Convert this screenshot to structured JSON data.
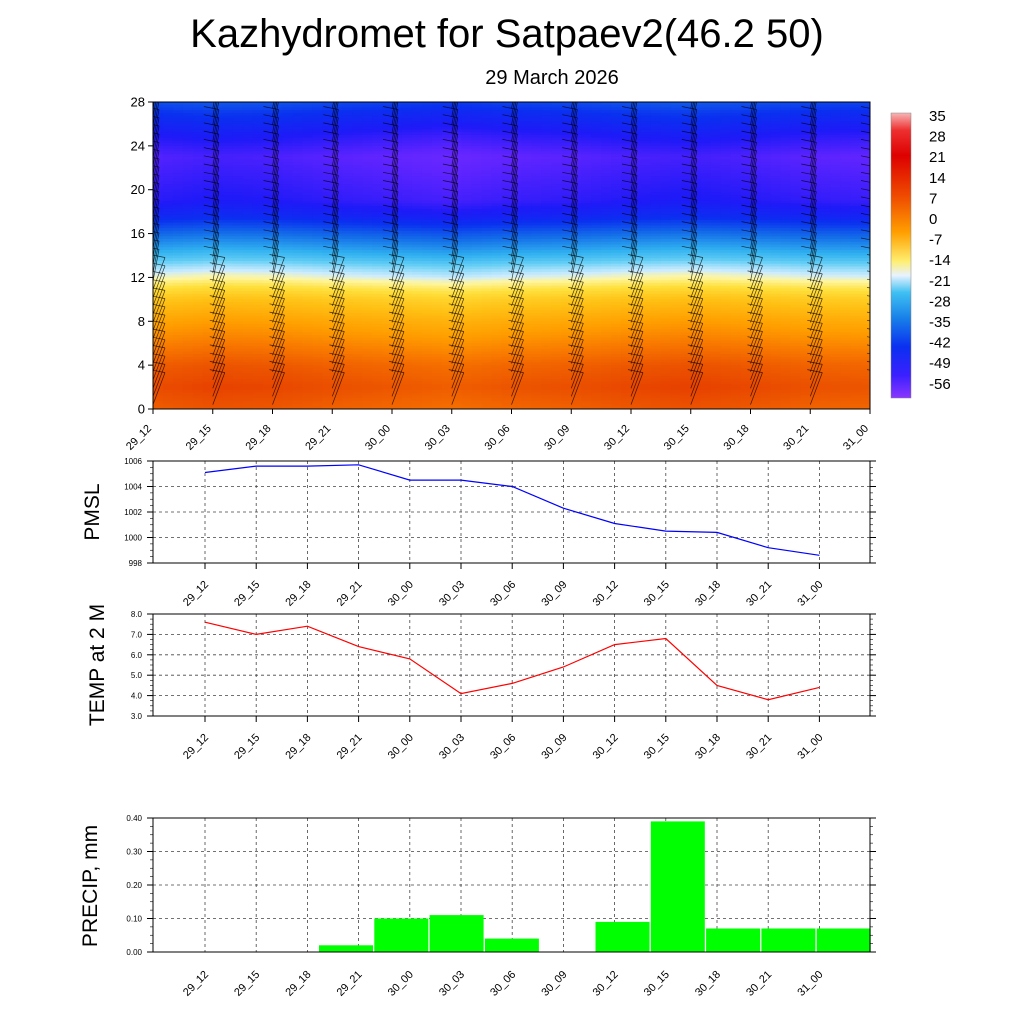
{
  "header": {
    "title": "Kazhydromet for Satpaev2(46.2 50)",
    "date": "29 March 2026"
  },
  "time_labels": [
    "29_12",
    "29_15",
    "29_18",
    "29_21",
    "30_00",
    "30_03",
    "30_06",
    "30_09",
    "30_12",
    "30_15",
    "30_18",
    "30_21",
    "31_00"
  ],
  "chart_data": [
    {
      "type": "heatmap",
      "panel": "upper-air-temperature",
      "x": [
        "29_12",
        "29_15",
        "29_18",
        "29_21",
        "30_00",
        "30_03",
        "30_06",
        "30_09",
        "30_12",
        "30_15",
        "30_18",
        "30_21",
        "31_00"
      ],
      "y_ticks": [
        0,
        4,
        8,
        12,
        16,
        20,
        24,
        28
      ],
      "ylim": [
        0,
        28
      ],
      "colorbar_labels": [
        35,
        28,
        21,
        14,
        7,
        0,
        -7,
        -14,
        -21,
        -28,
        -35,
        -42,
        -49,
        -56
      ],
      "colorbar_range": [
        -63,
        42
      ],
      "profile": [
        [
          0,
          8
        ],
        [
          2,
          10
        ],
        [
          4,
          8
        ],
        [
          6,
          4
        ],
        [
          8,
          0
        ],
        [
          10,
          -5
        ],
        [
          11,
          -9
        ],
        [
          11.8,
          -13
        ],
        [
          12.8,
          -18
        ],
        [
          14,
          -26
        ],
        [
          16,
          -37
        ],
        [
          17.5,
          -46
        ],
        [
          19,
          -51
        ],
        [
          21,
          -53
        ],
        [
          23,
          -55
        ],
        [
          25,
          -50
        ],
        [
          27,
          -44
        ],
        [
          28,
          -40
        ]
      ],
      "hour_offsets": [
        0,
        0.5,
        0.3,
        -0.2,
        -0.6,
        -1.0,
        -0.5,
        -0.2,
        0.3,
        0.6,
        0.2,
        -0.3,
        -0.5
      ],
      "colors": {
        "cold": "#6a28ff",
        "warm": "#ee5500"
      }
    },
    {
      "type": "line",
      "panel": "pmsl",
      "ylabel": "PMSL",
      "x": [
        "29_12",
        "29_15",
        "29_18",
        "29_21",
        "30_00",
        "30_03",
        "30_06",
        "30_09",
        "30_12",
        "30_15",
        "30_18",
        "30_21",
        "31_00"
      ],
      "values": [
        1005.1,
        1005.6,
        1005.6,
        1005.7,
        1004.5,
        1004.5,
        1004.0,
        1002.3,
        1001.1,
        1000.5,
        1000.4,
        999.2,
        998.6
      ],
      "ylim": [
        998,
        1006
      ],
      "yticks": [
        "998",
        "1000",
        "1002",
        "1004",
        "1006"
      ],
      "color": "#0000ff",
      "grid": true
    },
    {
      "type": "line",
      "panel": "temp2m",
      "ylabel": "TEMP at 2 M",
      "x": [
        "29_12",
        "29_15",
        "29_18",
        "29_21",
        "30_00",
        "30_03",
        "30_06",
        "30_09",
        "30_12",
        "30_15",
        "30_18",
        "30_21",
        "31_00"
      ],
      "values": [
        7.6,
        7.0,
        7.4,
        6.4,
        5.8,
        4.1,
        4.6,
        5.4,
        6.5,
        6.8,
        4.5,
        3.8,
        4.4
      ],
      "ylim": [
        3.0,
        8.0
      ],
      "yticks": [
        "3.0",
        "4.0",
        "5.0",
        "6.0",
        "7.0",
        "8.0"
      ],
      "color": "#ff0000",
      "grid": true
    },
    {
      "type": "bar",
      "panel": "precip",
      "ylabel": "PRECIP, mm",
      "categories": [
        "29_12",
        "29_15",
        "29_18",
        "29_21",
        "30_00",
        "30_03",
        "30_06",
        "30_09",
        "30_12",
        "30_15",
        "30_18",
        "30_21",
        "31_00"
      ],
      "values": [
        0,
        0,
        0,
        0.02,
        0.1,
        0.11,
        0.04,
        0,
        0.09,
        0.39,
        0.07,
        0.07,
        0.07
      ],
      "ylim": [
        0,
        0.4
      ],
      "yticks": [
        "0.00",
        "0.10",
        "0.20",
        "0.30",
        "0.40"
      ],
      "color": "#00ff00",
      "grid": true
    }
  ]
}
